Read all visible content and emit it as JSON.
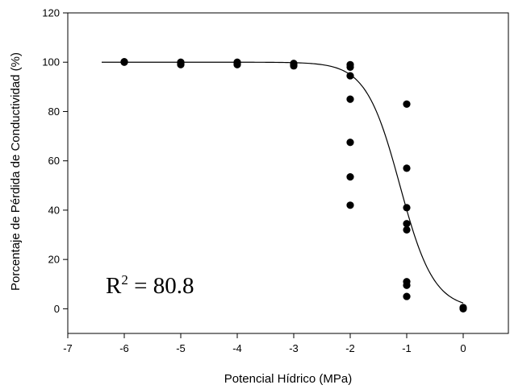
{
  "chart_data": {
    "type": "scatter",
    "xlabel": "Potencial Hídrico (MPa)",
    "ylabel": "Porcentaje de Pérdida de Conductividad (%)",
    "xlim": [
      -7,
      0.8
    ],
    "ylim": [
      -10,
      120
    ],
    "x_ticks": [
      "-7",
      "-6",
      "-5",
      "-4",
      "-3",
      "-2",
      "-1",
      "0"
    ],
    "y_ticks": [
      "0",
      "20",
      "40",
      "60",
      "80",
      "100",
      "120"
    ],
    "grid": false,
    "annotation": {
      "base": "R",
      "sup": "2",
      "rest": " = 80.8"
    },
    "points": [
      {
        "x": -6,
        "y": 100.2
      },
      {
        "x": -6,
        "y": 100.0
      },
      {
        "x": -5,
        "y": 100.0
      },
      {
        "x": -5,
        "y": 99.5
      },
      {
        "x": -5,
        "y": 99.0
      },
      {
        "x": -4,
        "y": 100.0
      },
      {
        "x": -4,
        "y": 99.5
      },
      {
        "x": -4,
        "y": 99.0
      },
      {
        "x": -3,
        "y": 99.5
      },
      {
        "x": -3,
        "y": 99.0
      },
      {
        "x": -3,
        "y": 98.5
      },
      {
        "x": -2,
        "y": 99.0
      },
      {
        "x": -2,
        "y": 98.0
      },
      {
        "x": -2,
        "y": 94.5
      },
      {
        "x": -2,
        "y": 85.0
      },
      {
        "x": -2,
        "y": 67.5
      },
      {
        "x": -2,
        "y": 53.5
      },
      {
        "x": -2,
        "y": 42.0
      },
      {
        "x": -1,
        "y": 83.0
      },
      {
        "x": -1,
        "y": 57.0
      },
      {
        "x": -1,
        "y": 41.0
      },
      {
        "x": -1,
        "y": 34.5
      },
      {
        "x": -1,
        "y": 32.0
      },
      {
        "x": -1,
        "y": 11.0
      },
      {
        "x": -1,
        "y": 9.5
      },
      {
        "x": -1,
        "y": 5.0
      },
      {
        "x": 0,
        "y": 0.5
      },
      {
        "x": 0,
        "y": 0.0
      }
    ],
    "fit_curve": {
      "type": "sigmoid",
      "max": 100,
      "x50": -1.12,
      "slope": 0.3,
      "x_range": [
        -6.4,
        0
      ]
    },
    "colors": {
      "points": "#000000",
      "curve": "#000000",
      "axes": "#000000"
    }
  }
}
